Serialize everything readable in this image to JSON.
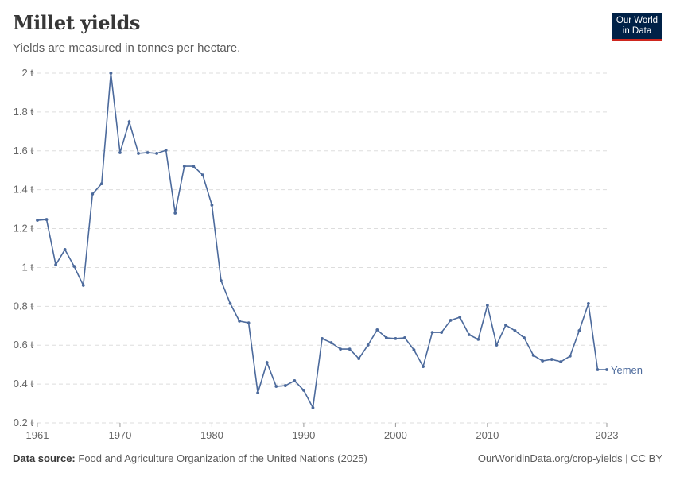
{
  "header": {
    "title": "Millet yields",
    "subtitle": "Yields are measured in tonnes per hectare.",
    "logo_line1": "Our World",
    "logo_line2": "in Data"
  },
  "footer": {
    "source_label": "Data source:",
    "source_text": "Food and Agriculture Organization of the United Nations (2025)",
    "link": "OurWorldinData.org/crop-yields | CC BY"
  },
  "chart_data": {
    "type": "line",
    "title": "Millet yields",
    "ylabel": "",
    "xlabel": "",
    "ylim": [
      0.2,
      2
    ],
    "xlim": [
      1961,
      2023
    ],
    "grid": true,
    "y_ticks": [
      {
        "v": 0.2,
        "label": "0.2 t"
      },
      {
        "v": 0.4,
        "label": "0.4 t"
      },
      {
        "v": 0.6,
        "label": "0.6 t"
      },
      {
        "v": 0.8,
        "label": "0.8 t"
      },
      {
        "v": 1,
        "label": "1 t"
      },
      {
        "v": 1.2,
        "label": "1.2 t"
      },
      {
        "v": 1.4,
        "label": "1.4 t"
      },
      {
        "v": 1.6,
        "label": "1.6 t"
      },
      {
        "v": 1.8,
        "label": "1.8 t"
      },
      {
        "v": 2,
        "label": "2 t"
      }
    ],
    "x_ticks": [
      {
        "v": 1961,
        "label": "1961"
      },
      {
        "v": 1970,
        "label": "1970"
      },
      {
        "v": 1980,
        "label": "1980"
      },
      {
        "v": 1990,
        "label": "1990"
      },
      {
        "v": 2000,
        "label": "2000"
      },
      {
        "v": 2010,
        "label": "2010"
      },
      {
        "v": 2023,
        "label": "2023"
      }
    ],
    "series": [
      {
        "name": "Yemen",
        "color": "#4c6a9c",
        "x": [
          1961,
          1962,
          1963,
          1964,
          1965,
          1966,
          1967,
          1968,
          1969,
          1970,
          1971,
          1972,
          1973,
          1974,
          1975,
          1976,
          1977,
          1978,
          1979,
          1980,
          1981,
          1982,
          1983,
          1984,
          1985,
          1986,
          1987,
          1988,
          1989,
          1990,
          1991,
          1992,
          1993,
          1994,
          1995,
          1996,
          1997,
          1998,
          1999,
          2000,
          2001,
          2002,
          2003,
          2004,
          2005,
          2006,
          2007,
          2008,
          2009,
          2010,
          2011,
          2012,
          2013,
          2014,
          2015,
          2016,
          2017,
          2018,
          2019,
          2020,
          2021,
          2022,
          2023
        ],
        "y": [
          1.243,
          1.247,
          1.014,
          1.092,
          1.006,
          0.908,
          1.378,
          1.431,
          2.0,
          1.591,
          1.75,
          1.587,
          1.591,
          1.587,
          1.603,
          1.28,
          1.521,
          1.521,
          1.476,
          1.321,
          0.932,
          0.814,
          0.724,
          0.715,
          0.355,
          0.511,
          0.388,
          0.392,
          0.417,
          0.368,
          0.278,
          0.634,
          0.613,
          0.58,
          0.58,
          0.531,
          0.601,
          0.679,
          0.638,
          0.634,
          0.638,
          0.576,
          0.49,
          0.666,
          0.666,
          0.728,
          0.744,
          0.654,
          0.63,
          0.805,
          0.601,
          0.703,
          0.675,
          0.638,
          0.548,
          0.519,
          0.527,
          0.515,
          0.544,
          0.675,
          0.814,
          0.474,
          0.474
        ]
      }
    ]
  }
}
